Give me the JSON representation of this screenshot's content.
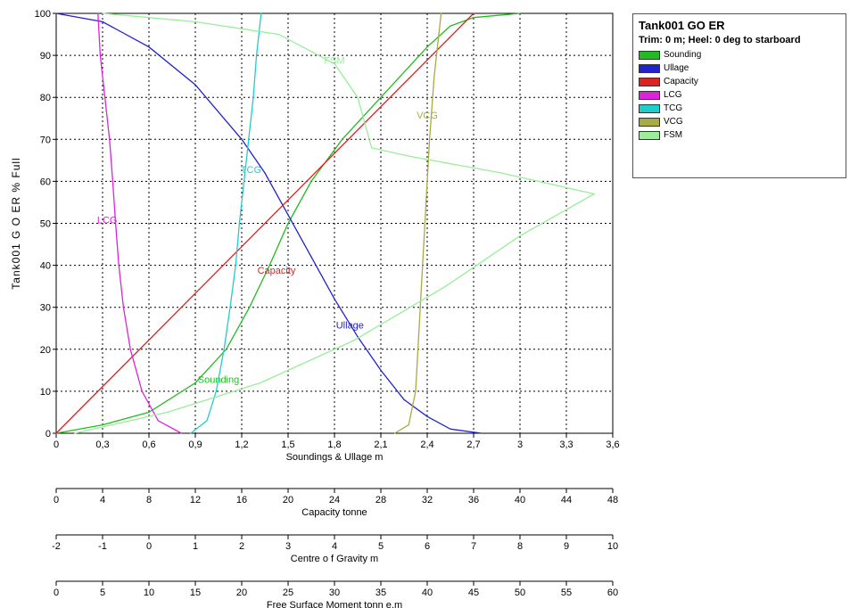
{
  "chart_data": {
    "type": "line",
    "title": "Tank001 GO ER",
    "subtitle": "Trim: 0 m; Heel: 0 deg to starboard",
    "ylabel": "Tank001 G O ER    % Full",
    "ylim": [
      0,
      100
    ],
    "yticks": [
      "0",
      "10",
      "20",
      "30",
      "40",
      "50",
      "60",
      "70",
      "80",
      "90",
      "100"
    ],
    "axes": [
      {
        "label": "Soundings & Ullage  m",
        "min": 0,
        "max": 3.6,
        "ticks": [
          "0",
          "0,3",
          "0,6",
          "0,9",
          "1,2",
          "1,5",
          "1,8",
          "2,1",
          "2,4",
          "2,7",
          "3",
          "3,3",
          "3,6"
        ]
      },
      {
        "label": "Capacity  tonne",
        "min": 0,
        "max": 48,
        "ticks": [
          "0",
          "4",
          "8",
          "12",
          "16",
          "20",
          "24",
          "28",
          "32",
          "36",
          "40",
          "44",
          "48"
        ]
      },
      {
        "label": "Centre o f Gravity  m",
        "min": -2,
        "max": 10,
        "ticks": [
          "-2",
          "-1",
          "0",
          "1",
          "2",
          "3",
          "4",
          "5",
          "6",
          "7",
          "8",
          "9",
          "10"
        ]
      },
      {
        "label": "Free Surface Moment  tonn e.m",
        "min": 0,
        "max": 60,
        "ticks": [
          "0",
          "5",
          "10",
          "15",
          "20",
          "25",
          "30",
          "35",
          "40",
          "45",
          "50",
          "55",
          "60"
        ]
      }
    ],
    "grid": true,
    "legend_position": "right",
    "series": [
      {
        "name": "Sounding",
        "axis": 0,
        "color": "#22bb22",
        "label": "Sounding",
        "label_at": [
          1.05,
          12
        ],
        "points": [
          [
            0.0,
            0
          ],
          [
            0.3,
            2
          ],
          [
            0.6,
            5
          ],
          [
            0.9,
            12
          ],
          [
            1.1,
            20
          ],
          [
            1.25,
            30
          ],
          [
            1.38,
            40
          ],
          [
            1.5,
            50
          ],
          [
            1.65,
            60
          ],
          [
            1.85,
            70
          ],
          [
            2.1,
            80
          ],
          [
            2.4,
            92
          ],
          [
            2.55,
            97
          ],
          [
            2.7,
            99
          ],
          [
            3.0,
            100
          ]
        ]
      },
      {
        "name": "Ullage",
        "axis": 0,
        "color": "#2222cc",
        "label": "Ullage",
        "label_at": [
          1.9,
          25
        ],
        "points": [
          [
            0.0,
            100
          ],
          [
            0.3,
            98
          ],
          [
            0.6,
            92
          ],
          [
            0.9,
            83
          ],
          [
            1.2,
            70
          ],
          [
            1.35,
            62
          ],
          [
            1.5,
            52
          ],
          [
            1.65,
            42
          ],
          [
            1.8,
            32
          ],
          [
            1.95,
            23
          ],
          [
            2.1,
            15
          ],
          [
            2.25,
            8
          ],
          [
            2.4,
            4
          ],
          [
            2.55,
            1
          ],
          [
            2.75,
            0
          ]
        ]
      },
      {
        "name": "Capacity",
        "axis": 1,
        "color": "#dd2222",
        "label": "Capacity",
        "label_at": [
          19.0,
          38
        ],
        "points": [
          [
            0,
            0
          ],
          [
            36,
            100
          ]
        ]
      },
      {
        "name": "LCG",
        "axis": 2,
        "color": "#dd22dd",
        "label": "LCG",
        "label_at": [
          -0.9,
          50
        ],
        "points": [
          [
            -1.1,
            100
          ],
          [
            -1.05,
            90
          ],
          [
            -0.95,
            80
          ],
          [
            -0.85,
            70
          ],
          [
            -0.78,
            60
          ],
          [
            -0.72,
            50
          ],
          [
            -0.65,
            40
          ],
          [
            -0.55,
            30
          ],
          [
            -0.4,
            20
          ],
          [
            -0.15,
            10
          ],
          [
            0.2,
            3
          ],
          [
            0.7,
            0
          ]
        ]
      },
      {
        "name": "TCG",
        "axis": 2,
        "color": "#22cccc",
        "label": "TCG",
        "label_at": [
          2.2,
          62
        ],
        "points": [
          [
            0.9,
            0
          ],
          [
            1.25,
            3
          ],
          [
            1.45,
            10
          ],
          [
            1.62,
            20
          ],
          [
            1.75,
            30
          ],
          [
            1.87,
            40
          ],
          [
            1.95,
            50
          ],
          [
            2.05,
            60
          ],
          [
            2.15,
            70
          ],
          [
            2.25,
            80
          ],
          [
            2.32,
            90
          ],
          [
            2.42,
            100
          ]
        ]
      },
      {
        "name": "VCG",
        "axis": 2,
        "color": "#aaaa44",
        "label": "VCG",
        "label_at": [
          6.0,
          75
        ],
        "points": [
          [
            5.3,
            0
          ],
          [
            5.6,
            2
          ],
          [
            5.75,
            10
          ],
          [
            5.85,
            30
          ],
          [
            5.95,
            50
          ],
          [
            6.05,
            70
          ],
          [
            6.15,
            85
          ],
          [
            6.3,
            100
          ]
        ]
      },
      {
        "name": "FSM",
        "axis": 3,
        "color": "#99ee99",
        "label": "FSM",
        "label_at": [
          30.0,
          88
        ],
        "points": [
          [
            2,
            0
          ],
          [
            12,
            5
          ],
          [
            22,
            12
          ],
          [
            32,
            22
          ],
          [
            42,
            35
          ],
          [
            50,
            47
          ],
          [
            58,
            57
          ],
          [
            48,
            62
          ],
          [
            38,
            66
          ],
          [
            34,
            68
          ],
          [
            32.5,
            80
          ],
          [
            30,
            88
          ],
          [
            24,
            95
          ],
          [
            15,
            98
          ],
          [
            5,
            100
          ]
        ]
      }
    ]
  },
  "legend": {
    "title": "Tank001 GO ER",
    "subtitle": "Trim: 0 m; Heel: 0 deg to starboard",
    "items": [
      {
        "label": "Sounding",
        "color": "#22bb22"
      },
      {
        "label": "Ullage",
        "color": "#2222cc"
      },
      {
        "label": "Capacity",
        "color": "#dd2222"
      },
      {
        "label": "LCG",
        "color": "#dd22dd"
      },
      {
        "label": "TCG",
        "color": "#22cccc"
      },
      {
        "label": "VCG",
        "color": "#aaaa44"
      },
      {
        "label": "FSM",
        "color": "#99ee99"
      }
    ]
  }
}
